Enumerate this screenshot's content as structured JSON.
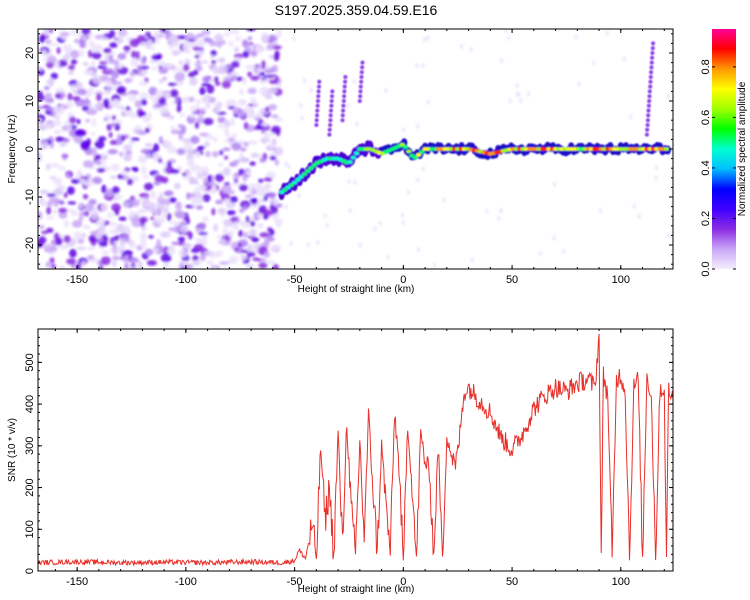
{
  "title": "S197.2025.359.04.59.E16",
  "chart_data": [
    {
      "type": "heatmap",
      "name": "spectrogram",
      "xlabel": "Height of straight line (km)",
      "ylabel": "Frequency (Hz)",
      "xlim": [
        -168,
        124
      ],
      "ylim": [
        -25,
        25
      ],
      "xticks": [
        -150,
        -100,
        -50,
        0,
        50,
        100
      ],
      "yticks": [
        -20,
        -10,
        0,
        10,
        20
      ],
      "xtick_labels": [
        "-150",
        "-100",
        "-50",
        "0",
        "50",
        "100"
      ],
      "ytick_labels": [
        "-20",
        "-10",
        "0",
        "10",
        "20"
      ],
      "noise_region_x": [
        -168,
        -57
      ],
      "ridge": {
        "description": "frequency track of main signal",
        "x": [
          -56,
          -50,
          -45,
          -40,
          -35,
          -30,
          -25,
          -20,
          -15,
          -10,
          -5,
          0,
          5,
          10,
          20,
          30,
          40,
          50,
          60,
          70,
          80,
          90,
          100,
          110,
          122
        ],
        "freq": [
          -9,
          -7,
          -5,
          -3,
          -2,
          -2,
          -3,
          0,
          0,
          -1,
          0,
          1,
          -2,
          0,
          0,
          0,
          -1,
          0,
          0,
          0,
          0,
          0,
          0,
          0,
          0
        ]
      },
      "colorbar": {
        "label": "Normalized spectral amplitude",
        "range": [
          0,
          0.95
        ],
        "ticks": [
          0.0,
          0.2,
          0.4,
          0.6,
          0.8
        ],
        "tick_labels": [
          "0.0",
          "0.2",
          "0.4",
          "0.6",
          "0.8"
        ],
        "colors": [
          "#f4eefc",
          "#c9a6f7",
          "#8a2be2",
          "#3f00ff",
          "#0000ff",
          "#00bfff",
          "#00ffd0",
          "#00ff00",
          "#a0ff00",
          "#ffff00",
          "#ff9900",
          "#ff0000",
          "#ff0099"
        ]
      }
    },
    {
      "type": "line",
      "name": "snr",
      "xlabel": "Height of straight line (km)",
      "ylabel": "SNR (10 * v/v)",
      "xlim": [
        -168,
        124
      ],
      "ylim": [
        0,
        580
      ],
      "xticks": [
        -150,
        -100,
        -50,
        0,
        50,
        100
      ],
      "yticks": [
        0,
        100,
        200,
        300,
        400,
        500
      ],
      "xtick_labels": [
        "-150",
        "-100",
        "-50",
        "0",
        "50",
        "100"
      ],
      "ytick_labels": [
        "0",
        "100",
        "200",
        "300",
        "400",
        "500"
      ],
      "color": "#e8302a",
      "series": [
        {
          "name": "SNR",
          "x": [
            -168,
            -150,
            -130,
            -110,
            -90,
            -70,
            -55,
            -50,
            -48,
            -45,
            -42,
            -40,
            -38,
            -36,
            -34,
            -32,
            -30,
            -28,
            -26,
            -24,
            -22,
            -20,
            -18,
            -16,
            -14,
            -12,
            -10,
            -8,
            -6,
            -4,
            -2,
            0,
            2,
            4,
            6,
            8,
            10,
            12,
            14,
            16,
            18,
            20,
            22,
            24,
            26,
            28,
            30,
            35,
            40,
            45,
            50,
            55,
            60,
            65,
            70,
            75,
            80,
            85,
            88,
            90,
            91,
            92,
            94,
            96,
            98,
            100,
            102,
            104,
            106,
            108,
            110,
            112,
            114,
            116,
            118,
            120,
            121,
            122,
            124
          ],
          "y": [
            20,
            22,
            20,
            21,
            20,
            22,
            20,
            25,
            50,
            30,
            110,
            30,
            300,
            120,
            200,
            40,
            330,
            60,
            360,
            150,
            40,
            310,
            80,
            370,
            200,
            50,
            300,
            160,
            40,
            380,
            250,
            20,
            360,
            200,
            30,
            330,
            260,
            240,
            40,
            300,
            30,
            330,
            280,
            250,
            330,
            430,
            440,
            410,
            380,
            320,
            290,
            330,
            390,
            420,
            440,
            430,
            450,
            460,
            440,
            560,
            40,
            470,
            420,
            30,
            460,
            470,
            430,
            30,
            440,
            460,
            30,
            470,
            420,
            30,
            440,
            430,
            30,
            440,
            410
          ]
        }
      ]
    }
  ]
}
